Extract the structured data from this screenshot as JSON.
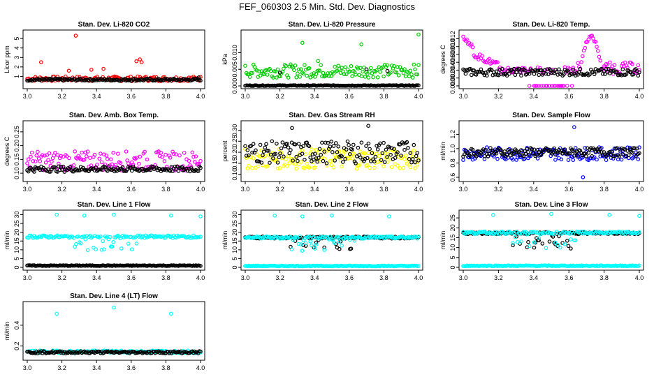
{
  "figure_title": "FEF_060303  2.5 Min. Std. Dev. Diagnostics",
  "chart_data": [
    {
      "type": "scatter",
      "title": "Stan. Dev. Li-820 CO2",
      "ylabel": "Licor ppm",
      "xlim": [
        3.0,
        4.0
      ],
      "ylim": [
        0,
        5.6
      ],
      "xticks": [
        "3.0",
        "3.2",
        "3.4",
        "3.6",
        "3.8",
        "4.0"
      ],
      "yticks": [
        1,
        2,
        3,
        4,
        5
      ],
      "ytick_labels": [
        "1",
        "2",
        "3",
        "4",
        "5"
      ],
      "series": [
        {
          "name": "primary",
          "color": "#ff0000",
          "base": 0.75,
          "noise": 0.25,
          "outliers": [
            [
              3.28,
              5.3
            ],
            [
              3.08,
              2.5
            ],
            [
              3.37,
              1.7
            ],
            [
              3.44,
              1.8
            ],
            [
              3.63,
              2.6
            ],
            [
              3.65,
              2.8
            ],
            [
              3.66,
              2.5
            ],
            [
              3.24,
              1.6
            ]
          ]
        },
        {
          "name": "secondary",
          "color": "#000000",
          "base": 0.65,
          "noise": 0.12,
          "outliers": [
            [
              3.99,
              0.9
            ]
          ]
        }
      ]
    },
    {
      "type": "scatter",
      "title": "Stan. Dev. Li-820 Pressure",
      "ylabel": "kPa",
      "xlim": [
        3.0,
        4.0
      ],
      "ylim": [
        0,
        0.016
      ],
      "xticks": [
        "3.0",
        "3.2",
        "3.4",
        "3.6",
        "3.8",
        "4.0"
      ],
      "yticks": [
        0,
        0.005,
        0.01
      ],
      "ytick_labels": [
        "0.000",
        "0.005",
        "0.010"
      ],
      "series": [
        {
          "name": "primary",
          "color": "#00cc00",
          "base": 0.0045,
          "noise": 0.002,
          "outliers": [
            [
              3.33,
              0.013
            ],
            [
              3.67,
              0.0125
            ],
            [
              4.0,
              0.0155
            ],
            [
              3.42,
              0.0075
            ]
          ]
        },
        {
          "name": "secondary",
          "color": "#000000",
          "base": 0.0001,
          "noise": 0.0001,
          "outliers": [
            [
              3.7,
              0.005
            ],
            [
              3.82,
              0.0045
            ],
            [
              3.2,
              0.004
            ]
          ]
        }
      ]
    },
    {
      "type": "scatter",
      "title": "Stan. Dev. Li-820 Temp.",
      "ylabel": "degrees C",
      "xlim": [
        3.0,
        4.0
      ],
      "ylim": [
        0,
        0.0135
      ],
      "xticks": [
        "3.0",
        "3.2",
        "3.4",
        "3.6",
        "3.8",
        "4.0"
      ],
      "yticks": [
        0,
        0.002,
        0.004,
        0.006,
        0.008,
        0.01,
        0.012
      ],
      "ytick_labels": [
        "0.000",
        "0.002",
        "0.004",
        "0.006",
        "0.008",
        "0.010",
        "0.012"
      ],
      "series": [
        {
          "name": "primary",
          "color": "#ff00ff",
          "shape": "temp",
          "base": 0.004,
          "noise": 0.0008,
          "outliers": []
        },
        {
          "name": "secondary",
          "color": "#000000",
          "base": 0.0035,
          "noise": 0.0009,
          "outliers": []
        }
      ]
    },
    {
      "type": "scatter",
      "title": "Stan. Dev. Amb. Box Temp.",
      "ylabel": "degrees C",
      "xlim": [
        3.0,
        4.0
      ],
      "ylim": [
        0.08,
        0.28
      ],
      "xticks": [
        "3.0",
        "3.2",
        "3.4",
        "3.6",
        "3.8",
        "4.0"
      ],
      "yticks": [
        0.1,
        0.15,
        0.2,
        0.25
      ],
      "ytick_labels": [
        "0.10",
        "0.15",
        "0.20",
        "0.25"
      ],
      "series": [
        {
          "name": "primary",
          "color": "#ff00ff",
          "base": 0.145,
          "noise": 0.035,
          "outliers": []
        },
        {
          "name": "secondary",
          "color": "#000000",
          "base": 0.115,
          "noise": 0.01,
          "outliers": []
        }
      ]
    },
    {
      "type": "scatter",
      "title": "Stan. Dev. Gas Stream RH",
      "ylabel": "percent",
      "xlim": [
        3.0,
        4.0
      ],
      "ylim": [
        0.08,
        0.33
      ],
      "xticks": [
        "3.0",
        "3.2",
        "3.4",
        "3.6",
        "3.8",
        "4.0"
      ],
      "yticks": [
        0.1,
        0.15,
        0.2,
        0.25,
        0.3
      ],
      "ytick_labels": [
        "0.10",
        "0.15",
        "0.20",
        "0.25",
        "0.30"
      ],
      "series": [
        {
          "name": "primary",
          "color": "#ffff00",
          "base": 0.17,
          "noise": 0.045,
          "outliers": []
        },
        {
          "name": "secondary",
          "color": "#000000",
          "base": 0.2,
          "noise": 0.05,
          "outliers": [
            [
              3.27,
              0.31
            ],
            [
              3.71,
              0.32
            ]
          ]
        }
      ]
    },
    {
      "type": "scatter",
      "title": "Stan. Dev. Sample Flow",
      "ylabel": "ml/min",
      "xlim": [
        3.0,
        4.0
      ],
      "ylim": [
        0.58,
        1.35
      ],
      "xticks": [
        "3.0",
        "3.2",
        "3.4",
        "3.6",
        "3.8",
        "4.0"
      ],
      "yticks": [
        0.6,
        0.8,
        1.0,
        1.2
      ],
      "ytick_labels": [
        "0.6",
        "0.8",
        "1.0",
        "1.2"
      ],
      "series": [
        {
          "name": "primary",
          "color": "#0000ff",
          "base": 0.93,
          "noise": 0.09,
          "outliers": [
            [
              3.63,
              1.3
            ],
            [
              3.68,
              0.6
            ]
          ]
        },
        {
          "name": "secondary",
          "color": "#000000",
          "base": 0.95,
          "noise": 0.06,
          "outliers": []
        }
      ]
    },
    {
      "type": "scatter",
      "title": "Stan. Dev. Line 1 Flow",
      "ylabel": "ml/min",
      "xlim": [
        3.0,
        4.0
      ],
      "ylim": [
        0,
        31
      ],
      "xticks": [
        "3.0",
        "3.2",
        "3.4",
        "3.6",
        "3.8",
        "4.0"
      ],
      "yticks": [
        0,
        5,
        10,
        15,
        20,
        25,
        30
      ],
      "ytick_labels": [
        "0",
        "5",
        "10",
        "15",
        "20",
        "25",
        "30"
      ],
      "series": [
        {
          "name": "primary",
          "color": "#00ffff",
          "base": 17.5,
          "noise": 0.7,
          "dip": true,
          "outliers": [
            [
              3.17,
              30
            ],
            [
              3.33,
              29.5
            ],
            [
              3.5,
              30
            ],
            [
              3.83,
              29.5
            ],
            [
              4.0,
              29
            ]
          ]
        },
        {
          "name": "secondary",
          "color": "#000000",
          "base": 1.0,
          "noise": 0.2,
          "outliers": []
        }
      ]
    },
    {
      "type": "scatter",
      "title": "Stan. Dev. Line 2 Flow",
      "ylabel": "ml/min",
      "xlim": [
        3.0,
        4.0
      ],
      "ylim": [
        0,
        31
      ],
      "xticks": [
        "3.0",
        "3.2",
        "3.4",
        "3.6",
        "3.8",
        "4.0"
      ],
      "yticks": [
        0,
        5,
        10,
        15,
        20,
        25,
        30
      ],
      "ytick_labels": [
        "0",
        "5",
        "10",
        "15",
        "20",
        "25",
        "30"
      ],
      "series": [
        {
          "name": "primary",
          "color": "#00ffff",
          "base": 0.8,
          "noise": 0.2,
          "outliers": [
            [
              3.17,
              29.5
            ],
            [
              3.33,
              29
            ],
            [
              3.5,
              29.5
            ],
            [
              3.83,
              29
            ]
          ]
        },
        {
          "name": "secondary",
          "color": "#000000",
          "base": 17,
          "noise": 0.6,
          "dip": true,
          "outliers": []
        },
        {
          "name": "tertiary",
          "color": "#00ffff",
          "base": 17,
          "noise": 0.7,
          "dip": true,
          "outliers": []
        }
      ]
    },
    {
      "type": "scatter",
      "title": "Stan. Dev. Line 3 Flow",
      "ylabel": "ml/min",
      "xlim": [
        3.0,
        4.0
      ],
      "ylim": [
        0,
        27.5
      ],
      "xticks": [
        "3.0",
        "3.2",
        "3.4",
        "3.6",
        "3.8",
        "4.0"
      ],
      "yticks": [
        0,
        5,
        10,
        15,
        20,
        25
      ],
      "ytick_labels": [
        "0",
        "5",
        "10",
        "15",
        "20",
        "25"
      ],
      "series": [
        {
          "name": "primary",
          "color": "#00ffff",
          "base": 0.8,
          "noise": 0.2,
          "outliers": [
            [
              3.17,
              26.5
            ],
            [
              3.5,
              27
            ],
            [
              3.83,
              26.5
            ],
            [
              4.0,
              26
            ]
          ]
        },
        {
          "name": "secondary",
          "color": "#000000",
          "base": 17.3,
          "noise": 0.5,
          "dip": true,
          "outliers": []
        },
        {
          "name": "tertiary",
          "color": "#00ffff",
          "base": 17.5,
          "noise": 0.6,
          "dip": true,
          "outliers": []
        }
      ]
    },
    {
      "type": "scatter",
      "title": "Stan. Dev. Line 4 (LT) Flow",
      "ylabel": "ml/min",
      "xlim": [
        3.0,
        4.0
      ],
      "ylim": [
        0.09,
        0.6
      ],
      "xticks": [
        "3.0",
        "3.2",
        "3.4",
        "3.6",
        "3.8",
        "4.0"
      ],
      "yticks": [
        0.2,
        0.4
      ],
      "ytick_labels": [
        "0.2",
        "0.4"
      ],
      "series": [
        {
          "name": "primary",
          "color": "#00ffff",
          "base": 0.145,
          "noise": 0.012,
          "outliers": [
            [
              3.17,
              0.51
            ],
            [
              3.5,
              0.57
            ],
            [
              3.83,
              0.51
            ]
          ]
        },
        {
          "name": "secondary",
          "color": "#000000",
          "base": 0.14,
          "noise": 0.01,
          "outliers": []
        }
      ]
    }
  ]
}
